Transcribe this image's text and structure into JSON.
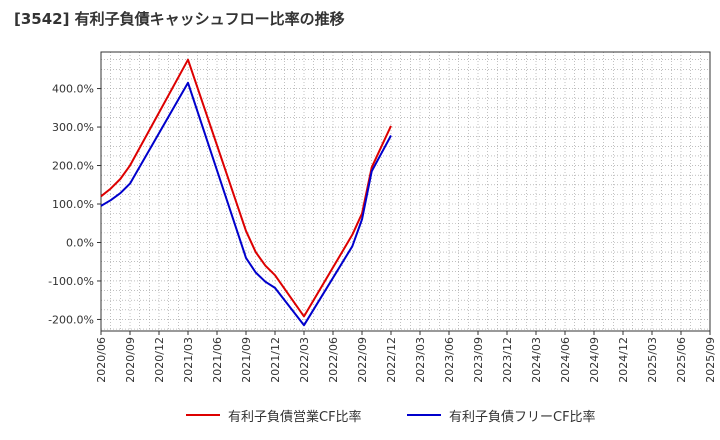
{
  "title": "[3542]  有利子負債キャッシュフロー比率の推移",
  "chart_data": {
    "type": "line",
    "title": "[3542]  有利子負債キャッシュフロー比率の推移",
    "xlabel": "",
    "ylabel": "",
    "x_ticks": [
      "2020/06",
      "2020/09",
      "2020/12",
      "2021/03",
      "2021/06",
      "2021/09",
      "2021/12",
      "2022/03",
      "2022/06",
      "2022/09",
      "2022/12",
      "2023/03",
      "2023/06",
      "2023/09",
      "2023/12",
      "2024/03",
      "2024/06",
      "2024/09",
      "2024/12",
      "2025/03",
      "2025/06",
      "2025/09"
    ],
    "y_ticks": [
      -200,
      -100,
      0,
      100,
      200,
      300,
      400
    ],
    "y_tick_labels": [
      "-200.0%",
      "-100.0%",
      "0.0%",
      "100.0%",
      "200.0%",
      "300.0%",
      "400.0%"
    ],
    "ylim": [
      -230,
      495
    ],
    "grid": true,
    "legend_position": "bottom",
    "series": [
      {
        "name": "有利子負債営業CF比率",
        "color": "#dd0000",
        "points": [
          [
            "2020/06",
            120
          ],
          [
            "2020/07",
            140
          ],
          [
            "2020/08",
            165
          ],
          [
            "2020/09",
            200
          ],
          [
            "2021/03",
            475
          ],
          [
            "2021/09",
            30
          ],
          [
            "2021/10",
            -25
          ],
          [
            "2021/11",
            -60
          ],
          [
            "2021/12",
            -85
          ],
          [
            "2022/03",
            -192
          ],
          [
            "2022/08",
            20
          ],
          [
            "2022/09",
            75
          ],
          [
            "2022/10",
            195
          ],
          [
            "2022/12",
            303
          ]
        ]
      },
      {
        "name": "有利子負債フリーCF比率",
        "color": "#0000cc",
        "points": [
          [
            "2020/06",
            95
          ],
          [
            "2020/07",
            110
          ],
          [
            "2020/08",
            128
          ],
          [
            "2020/09",
            153
          ],
          [
            "2021/03",
            415
          ],
          [
            "2021/09",
            -40
          ],
          [
            "2021/10",
            -78
          ],
          [
            "2021/11",
            -102
          ],
          [
            "2021/12",
            -118
          ],
          [
            "2022/03",
            -215
          ],
          [
            "2022/08",
            -10
          ],
          [
            "2022/09",
            60
          ],
          [
            "2022/10",
            185
          ],
          [
            "2022/12",
            278
          ]
        ]
      }
    ]
  }
}
